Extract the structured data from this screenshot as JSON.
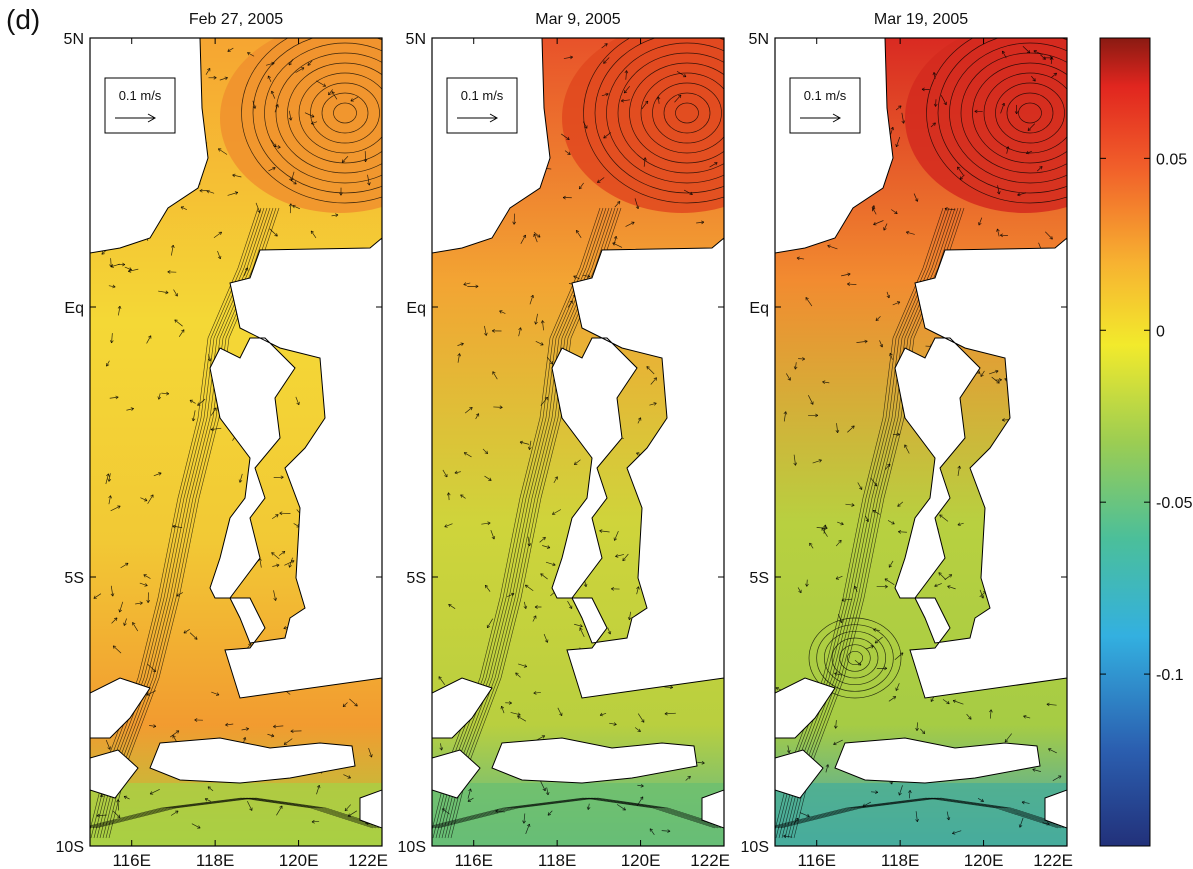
{
  "figure_label": "(d)",
  "panels": [
    {
      "title": "Feb 27, 2005",
      "scale_label": "0.1 m/s",
      "regime": -1
    },
    {
      "title": "Mar 9, 2005",
      "scale_label": "0.1 m/s",
      "regime": 0
    },
    {
      "title": "Mar 19, 2005",
      "scale_label": "0.1 m/s",
      "regime": 1
    }
  ],
  "y_ticks": [
    "5N",
    "Eq",
    "5S",
    "10S"
  ],
  "x_ticks": [
    "116E",
    "118E",
    "120E",
    "122E"
  ],
  "colorbar": {
    "ticks": [
      "0.05",
      "0",
      "-0.05",
      "-0.1"
    ],
    "colors": [
      "#7f0000",
      "#d7191c",
      "#f46d43",
      "#fdae61",
      "#fee08b",
      "#e6f598",
      "#abdda4",
      "#66c2a5",
      "#3288bd",
      "#1f3a93"
    ]
  },
  "colors": {
    "land": "#ffffff",
    "outline": "#000000"
  }
}
